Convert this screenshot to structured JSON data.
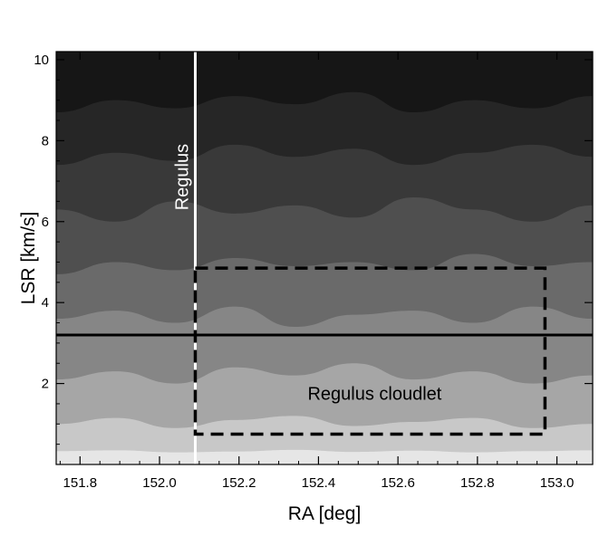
{
  "chart_data": {
    "type": "heatmap",
    "title": "",
    "xlabel": "RA [deg]",
    "ylabel": "LSR [km/s]",
    "xlim": [
      151.74,
      153.09
    ],
    "ylim": [
      0.0,
      10.2
    ],
    "xticks": [
      151.8,
      152.0,
      152.2,
      152.4,
      152.6,
      152.8,
      153.0
    ],
    "xtick_labels": [
      "151.8",
      "152.0",
      "152.2",
      "152.4",
      "152.6",
      "152.8",
      "153.0"
    ],
    "yticks": [
      2,
      4,
      6,
      8,
      10
    ],
    "ytick_labels": [
      "2",
      "4",
      "6",
      "8",
      "10"
    ],
    "grid": false,
    "colormap": [
      "#e6e6e6",
      "#c8c8c8",
      "#a6a6a6",
      "#868686",
      "#6a6a6a",
      "#4f4f4f",
      "#393939",
      "#262626",
      "#161616"
    ],
    "contour_bands": [
      {
        "level": 1,
        "lower_boundary": [
          0.33,
          0.35,
          0.3,
          0.32,
          0.36,
          0.31,
          0.34,
          0.3,
          0.33,
          0.35
        ]
      },
      {
        "level": 2,
        "lower_boundary": [
          1.0,
          1.15,
          0.9,
          1.1,
          1.2,
          0.95,
          1.05,
          1.15,
          0.9,
          1.0
        ]
      },
      {
        "level": 3,
        "lower_boundary": [
          2.1,
          2.3,
          2.0,
          2.4,
          2.2,
          2.5,
          2.1,
          2.3,
          2.0,
          2.2
        ]
      },
      {
        "level": 4,
        "lower_boundary": [
          3.6,
          3.8,
          3.5,
          3.9,
          3.4,
          3.7,
          3.8,
          3.5,
          3.9,
          3.6
        ]
      },
      {
        "level": 5,
        "lower_boundary": [
          4.7,
          5.0,
          4.8,
          5.1,
          4.9,
          5.0,
          4.8,
          5.2,
          4.9,
          5.0
        ]
      },
      {
        "level": 6,
        "lower_boundary": [
          6.3,
          6.0,
          6.5,
          6.2,
          6.4,
          6.1,
          6.6,
          6.3,
          6.0,
          6.4
        ]
      },
      {
        "level": 7,
        "lower_boundary": [
          7.4,
          7.7,
          7.5,
          7.9,
          7.6,
          7.8,
          7.4,
          7.7,
          7.9,
          7.6
        ]
      },
      {
        "level": 8,
        "lower_boundary": [
          8.7,
          9.0,
          8.8,
          9.1,
          8.9,
          9.2,
          8.7,
          9.0,
          8.8,
          9.1
        ]
      }
    ],
    "vertical_line": {
      "x": 152.09,
      "color": "#ffffff",
      "label": "Regulus"
    },
    "horizontal_line": {
      "y": 3.2,
      "color": "#000000"
    },
    "box": {
      "x0": 152.09,
      "x1": 152.97,
      "y0": 0.75,
      "y1": 4.85,
      "style": "dashed",
      "label": "Regulus cloudlet"
    }
  }
}
